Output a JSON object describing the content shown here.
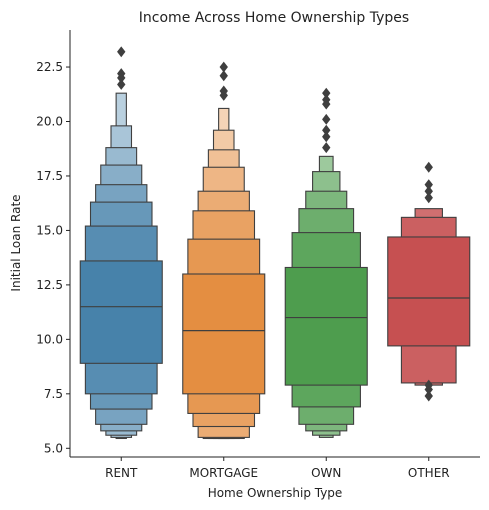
{
  "chart_data": {
    "type": "boxen",
    "title": "Income Across Home Ownership Types",
    "xlabel": "Home Ownership Type",
    "ylabel": "Initial Loan Rate",
    "ylim": [
      4.6,
      24.2
    ],
    "yticks": [
      5.0,
      7.5,
      10.0,
      12.5,
      15.0,
      17.5,
      20.0,
      22.5
    ],
    "ytick_labels": [
      "5.0",
      "7.5",
      "10.0",
      "12.5",
      "15.0",
      "17.5",
      "20.0",
      "22.5"
    ],
    "grid": false,
    "categories": [
      "RENT",
      "MORTGAGE",
      "OWN",
      "OTHER"
    ],
    "series": [
      {
        "category": "RENT",
        "color": "#3274a1",
        "median": 11.5,
        "levels": [
          [
            8.9,
            13.6
          ],
          [
            7.5,
            15.2
          ],
          [
            6.8,
            16.3
          ],
          [
            6.1,
            17.1
          ],
          [
            5.8,
            18.0
          ],
          [
            5.6,
            18.8
          ],
          [
            5.5,
            19.8
          ],
          [
            5.45,
            21.3
          ]
        ],
        "outliers": [
          21.7,
          22.0,
          22.2,
          23.2
        ]
      },
      {
        "category": "MORTGAGE",
        "color": "#e1812c",
        "median": 10.4,
        "levels": [
          [
            7.5,
            13.0
          ],
          [
            6.6,
            14.6
          ],
          [
            6.0,
            15.9
          ],
          [
            5.5,
            16.8
          ],
          [
            5.45,
            17.9
          ],
          [
            5.45,
            18.7
          ],
          [
            5.45,
            19.6
          ],
          [
            5.45,
            20.6
          ]
        ],
        "outliers": [
          21.2,
          21.4,
          22.1,
          22.5
        ]
      },
      {
        "category": "OWN",
        "color": "#3a923a",
        "median": 11.0,
        "levels": [
          [
            7.9,
            13.3
          ],
          [
            6.9,
            14.9
          ],
          [
            6.1,
            16.0
          ],
          [
            5.8,
            16.8
          ],
          [
            5.6,
            17.7
          ],
          [
            5.5,
            18.4
          ]
        ],
        "outliers": [
          18.8,
          19.3,
          19.6,
          20.1,
          20.8,
          21.0,
          21.3
        ]
      },
      {
        "category": "OTHER",
        "color": "#c03d3e",
        "median": 11.9,
        "levels": [
          [
            9.7,
            14.7
          ],
          [
            8.0,
            15.6
          ],
          [
            7.9,
            16.0
          ]
        ],
        "outliers": [
          7.4,
          7.7,
          7.9,
          16.5,
          16.8,
          17.1,
          17.9
        ]
      }
    ]
  }
}
